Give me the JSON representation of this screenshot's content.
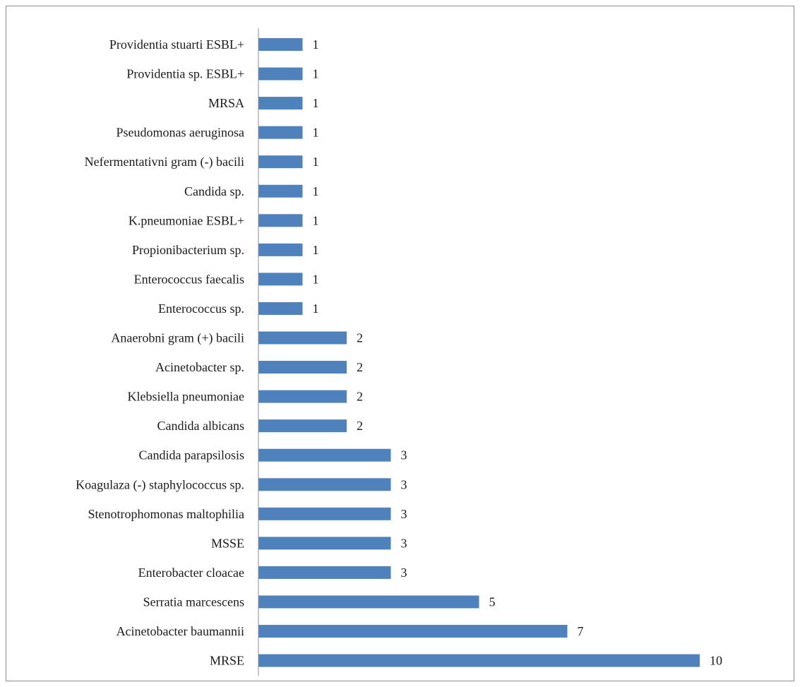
{
  "chart_data": {
    "type": "bar",
    "orientation": "horizontal",
    "title": "",
    "xlabel": "",
    "ylabel": "",
    "grid": false,
    "legend": "none",
    "bar_color": "#4f81bd",
    "xlim": [
      0,
      10.6
    ],
    "categories": [
      "Providentia stuarti ESBL+",
      "Providentia sp. ESBL+",
      "MRSA",
      "Pseudomonas aeruginosa",
      "Nefermentativni gram (-) bacili",
      "Candida sp.",
      "K.pneumoniae ESBL+",
      "Propionibacterium sp.",
      "Enterococcus faecalis",
      "Enterococcus sp.",
      "Anaerobni gram (+) bacili",
      "Acinetobacter sp.",
      "Klebsiella pneumoniae",
      "Candida albicans",
      "Candida parapsilosis",
      "Koagulaza (-) staphylococcus sp.",
      "Stenotrophomonas maltophilia",
      "MSSE",
      "Enterobacter cloacae",
      "Serratia marcescens",
      "Acinetobacter baumannii",
      "MRSE"
    ],
    "values": [
      1,
      1,
      1,
      1,
      1,
      1,
      1,
      1,
      1,
      1,
      2,
      2,
      2,
      2,
      3,
      3,
      3,
      3,
      3,
      5,
      7,
      10
    ]
  }
}
